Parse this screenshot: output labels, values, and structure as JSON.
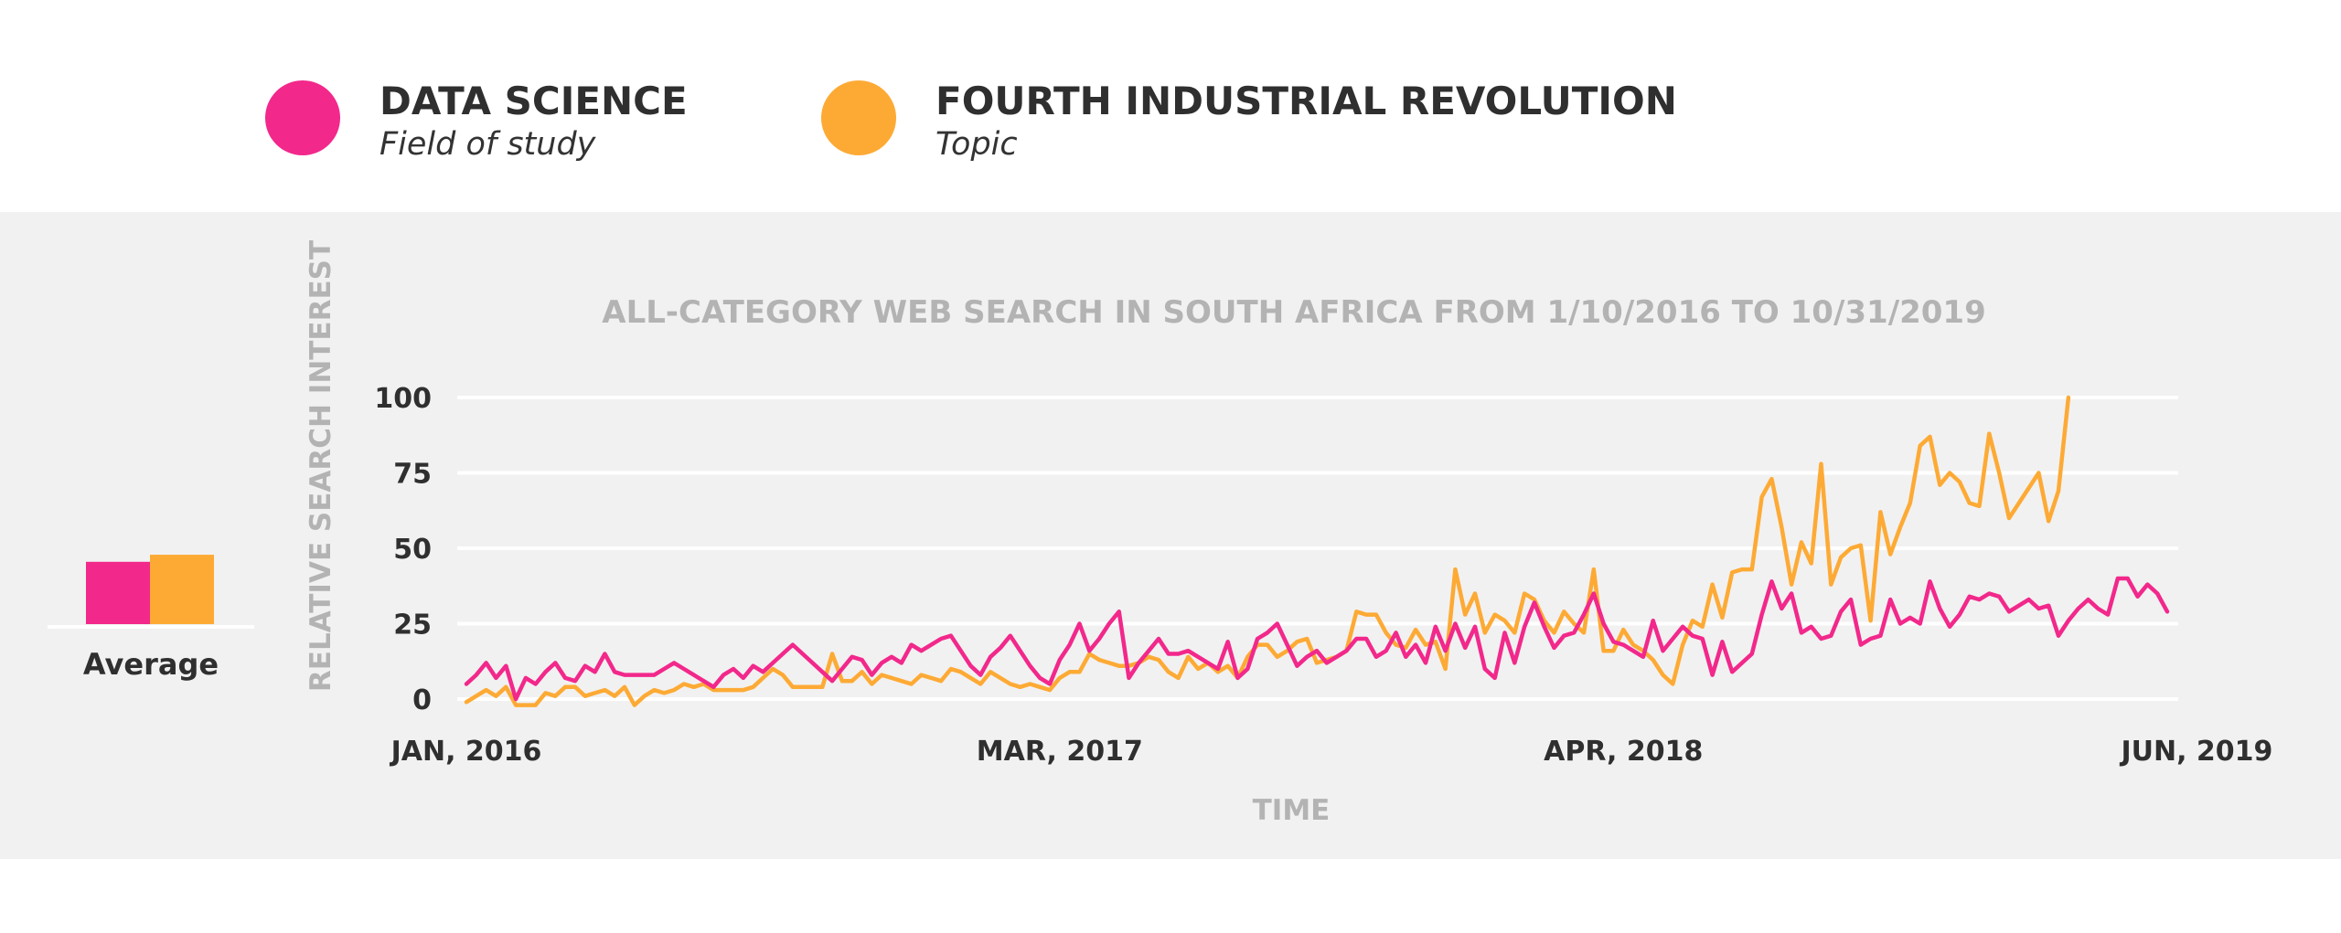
{
  "legend": [
    {
      "name": "DATA SCIENCE",
      "sub": "Field of study",
      "color": "#f2288b"
    },
    {
      "name": "FOURTH INDUSTRIAL REVOLUTION",
      "sub": "Topic",
      "color": "#fdaa35"
    }
  ],
  "average": {
    "label": "Average",
    "values": [
      44,
      49
    ]
  },
  "colors": {
    "panel": "#f1f1f1",
    "grid": "#ffffff",
    "muted_text": "#b3b3b3",
    "dark_text": "#2f2f2f"
  },
  "chart_data": {
    "type": "line",
    "title": "ALL-CATEGORY WEB SEARCH IN SOUTH AFRICA FROM 1/10/2016 TO 10/31/2019",
    "xlabel": "TIME",
    "ylabel": "RELATIVE SEARCH INTEREST",
    "ylim": [
      0,
      100
    ],
    "yticks": [
      0,
      25,
      50,
      75,
      100
    ],
    "x_tick_labels": [
      {
        "label": "JAN, 2016",
        "index": 0
      },
      {
        "label": "MAR, 2017",
        "index": 60
      },
      {
        "label": "APR, 2018",
        "index": 117
      },
      {
        "label": "JUN, 2019",
        "index": 175
      }
    ],
    "x_unit": "week",
    "x_start": "2016-01-10",
    "x_end": "2019-10-31",
    "grid": true,
    "series": [
      {
        "name": "DATA SCIENCE",
        "color": "#f2288b",
        "values": [
          5,
          8,
          12,
          7,
          11,
          0,
          7,
          5,
          9,
          12,
          7,
          6,
          11,
          9,
          15,
          9,
          8,
          8,
          8,
          8,
          10,
          12,
          10,
          8,
          6,
          4,
          8,
          10,
          7,
          11,
          9,
          12,
          15,
          18,
          15,
          12,
          9,
          6,
          10,
          14,
          13,
          8,
          12,
          14,
          12,
          18,
          16,
          18,
          20,
          21,
          16,
          11,
          8,
          14,
          17,
          21,
          16,
          11,
          7,
          5,
          13,
          18,
          25,
          16,
          20,
          25,
          29,
          7,
          12,
          16,
          20,
          15,
          15,
          16,
          14,
          12,
          10,
          19,
          7,
          10,
          20,
          22,
          25,
          18,
          11,
          14,
          16,
          12,
          14,
          16,
          20,
          20,
          14,
          16,
          22,
          14,
          18,
          12,
          24,
          16,
          25,
          17,
          24,
          10,
          7,
          22,
          12,
          24,
          32,
          24,
          17,
          21,
          22,
          28,
          35,
          25,
          19,
          18,
          16,
          14,
          26,
          16,
          20,
          24,
          21,
          20,
          8,
          19,
          9,
          12,
          15,
          28,
          39,
          30,
          35,
          22,
          24,
          20,
          21,
          29,
          33,
          18,
          20,
          21,
          33,
          25,
          27,
          25,
          39,
          30,
          24,
          28,
          34,
          33,
          35,
          34,
          29,
          31,
          33,
          30,
          31,
          21,
          26,
          30,
          33,
          30,
          28,
          40,
          40,
          34,
          38,
          35,
          29
        ]
      },
      {
        "name": "FOURTH INDUSTRIAL REVOLUTION",
        "color": "#fdaa35",
        "values": [
          -1,
          1,
          3,
          1,
          4,
          -2,
          -2,
          -2,
          2,
          1,
          4,
          4,
          1,
          2,
          3,
          1,
          4,
          -2,
          1,
          3,
          2,
          3,
          5,
          4,
          5,
          3,
          3,
          3,
          3,
          4,
          7,
          10,
          8,
          4,
          4,
          4,
          4,
          15,
          6,
          6,
          9,
          5,
          8,
          7,
          6,
          5,
          8,
          7,
          6,
          10,
          9,
          7,
          5,
          9,
          7,
          5,
          4,
          5,
          4,
          3,
          7,
          9,
          9,
          15,
          13,
          12,
          11,
          11,
          12,
          14,
          13,
          9,
          7,
          14,
          10,
          12,
          9,
          11,
          7,
          14,
          18,
          18,
          14,
          16,
          19,
          20,
          12,
          13,
          14,
          16,
          29,
          28,
          28,
          22,
          18,
          17,
          23,
          18,
          19,
          10,
          43,
          28,
          35,
          22,
          28,
          26,
          22,
          35,
          33,
          26,
          22,
          29,
          25,
          22,
          43,
          16,
          16,
          23,
          18,
          16,
          13,
          8,
          5,
          18,
          26,
          24,
          38,
          27,
          42,
          43,
          43,
          67,
          73,
          57,
          38,
          52,
          45,
          78,
          38,
          47,
          50,
          51,
          26,
          62,
          48,
          57,
          65,
          84,
          87,
          71,
          75,
          72,
          65,
          64,
          88,
          75,
          60,
          65,
          70,
          75,
          59,
          69,
          100
        ]
      }
    ]
  }
}
